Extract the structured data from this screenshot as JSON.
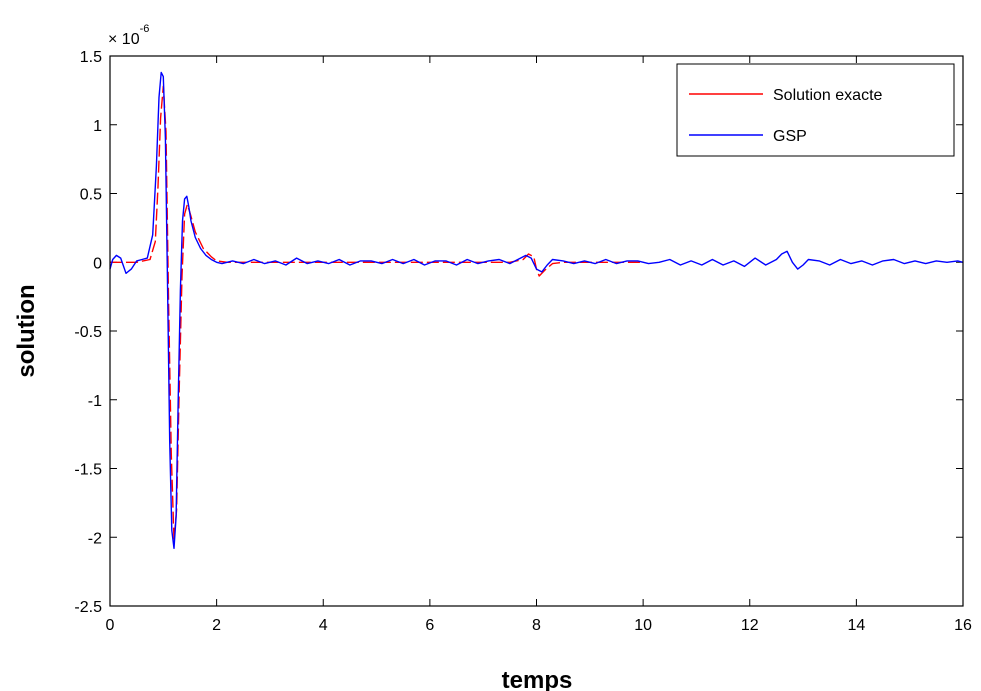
{
  "chart_data": {
    "type": "line",
    "title": "",
    "xlabel": "temps",
    "ylabel": "solution",
    "y_exponent_label": "× 10",
    "y_exponent": "-6",
    "xlim": [
      0,
      16
    ],
    "ylim": [
      -2.5,
      1.5
    ],
    "xticks": [
      0,
      2,
      4,
      6,
      8,
      10,
      12,
      14,
      16
    ],
    "yticks": [
      -2.5,
      -2,
      -1.5,
      -1,
      -0.5,
      0,
      0.5,
      1,
      1.5
    ],
    "xtick_labels": [
      "0",
      "2",
      "4",
      "6",
      "8",
      "10",
      "12",
      "14",
      "16"
    ],
    "ytick_labels": [
      "-2.5",
      "-2",
      "-1.5",
      "-1",
      "-0.5",
      "0",
      "0.5",
      "1",
      "1.5"
    ],
    "grid": false,
    "legend_position": "top-right",
    "series": [
      {
        "name": "Solution exacte",
        "color": "#ff0000",
        "x": [
          0,
          0.5,
          0.75,
          0.85,
          0.9,
          0.95,
          1.0,
          1.05,
          1.1,
          1.15,
          1.2,
          1.25,
          1.3,
          1.35,
          1.4,
          1.45,
          1.5,
          1.6,
          1.75,
          1.9,
          2.0,
          2.2,
          2.5,
          3.0,
          3.5,
          4.0,
          4.5,
          5.0,
          5.5,
          6.0,
          6.5,
          7.0,
          7.5,
          7.75,
          7.85,
          7.95,
          8.0,
          8.05,
          8.15,
          8.3,
          8.5,
          9.0,
          10.0
        ],
        "y": [
          0,
          0,
          0.02,
          0.15,
          0.55,
          1.05,
          1.28,
          0.95,
          -0.3,
          -1.4,
          -2.02,
          -1.8,
          -0.9,
          -0.1,
          0.35,
          0.42,
          0.36,
          0.22,
          0.1,
          0.04,
          0.01,
          0,
          0,
          0,
          0,
          0,
          0,
          0,
          0,
          0,
          0,
          0,
          0,
          0.02,
          0.06,
          0.04,
          -0.05,
          -0.1,
          -0.06,
          -0.01,
          0,
          0,
          0
        ]
      },
      {
        "name": "GSP",
        "color": "#0000ff",
        "x": [
          0,
          0.05,
          0.12,
          0.2,
          0.3,
          0.4,
          0.5,
          0.6,
          0.7,
          0.8,
          0.87,
          0.92,
          0.96,
          1.0,
          1.04,
          1.08,
          1.12,
          1.16,
          1.2,
          1.24,
          1.28,
          1.32,
          1.36,
          1.4,
          1.44,
          1.48,
          1.52,
          1.6,
          1.7,
          1.8,
          1.9,
          2.0,
          2.1,
          2.3,
          2.5,
          2.7,
          2.9,
          3.1,
          3.3,
          3.5,
          3.7,
          3.9,
          4.1,
          4.3,
          4.5,
          4.7,
          4.9,
          5.1,
          5.3,
          5.5,
          5.7,
          5.9,
          6.1,
          6.3,
          6.5,
          6.7,
          6.9,
          7.1,
          7.3,
          7.5,
          7.7,
          7.8,
          7.9,
          8.0,
          8.1,
          8.2,
          8.3,
          8.5,
          8.7,
          8.9,
          9.1,
          9.3,
          9.5,
          9.7,
          9.9,
          10.1,
          10.3,
          10.5,
          10.7,
          10.9,
          11.1,
          11.3,
          11.5,
          11.7,
          11.9,
          12.1,
          12.3,
          12.5,
          12.6,
          12.7,
          12.8,
          12.9,
          13.0,
          13.1,
          13.3,
          13.5,
          13.7,
          13.9,
          14.1,
          14.3,
          14.5,
          14.7,
          14.9,
          15.1,
          15.3,
          15.5,
          15.7,
          15.9,
          16.0
        ],
        "y": [
          -0.05,
          0.02,
          0.05,
          0.03,
          -0.08,
          -0.05,
          0.01,
          0.02,
          0.03,
          0.2,
          0.7,
          1.2,
          1.38,
          1.35,
          0.9,
          -0.2,
          -1.3,
          -1.95,
          -2.08,
          -1.85,
          -1.0,
          -0.2,
          0.3,
          0.46,
          0.48,
          0.4,
          0.3,
          0.18,
          0.1,
          0.05,
          0.02,
          0.0,
          -0.01,
          0.01,
          -0.01,
          0.02,
          -0.01,
          0.01,
          -0.02,
          0.03,
          -0.01,
          0.01,
          -0.01,
          0.02,
          -0.02,
          0.01,
          0.01,
          -0.01,
          0.02,
          -0.01,
          0.02,
          -0.02,
          0.01,
          0.01,
          -0.02,
          0.02,
          -0.01,
          0.01,
          0.02,
          -0.01,
          0.03,
          0.05,
          0.03,
          -0.05,
          -0.07,
          -0.02,
          0.02,
          0.01,
          -0.01,
          0.01,
          -0.01,
          0.02,
          -0.01,
          0.01,
          0.01,
          -0.01,
          0.0,
          0.02,
          -0.02,
          0.01,
          -0.02,
          0.02,
          -0.02,
          0.01,
          -0.03,
          0.03,
          -0.02,
          0.02,
          0.06,
          0.08,
          0.0,
          -0.05,
          -0.02,
          0.02,
          0.01,
          -0.02,
          0.02,
          -0.01,
          0.01,
          -0.02,
          0.01,
          0.02,
          -0.01,
          0.01,
          -0.01,
          0.01,
          0.0,
          0.01,
          0.0
        ]
      }
    ]
  }
}
